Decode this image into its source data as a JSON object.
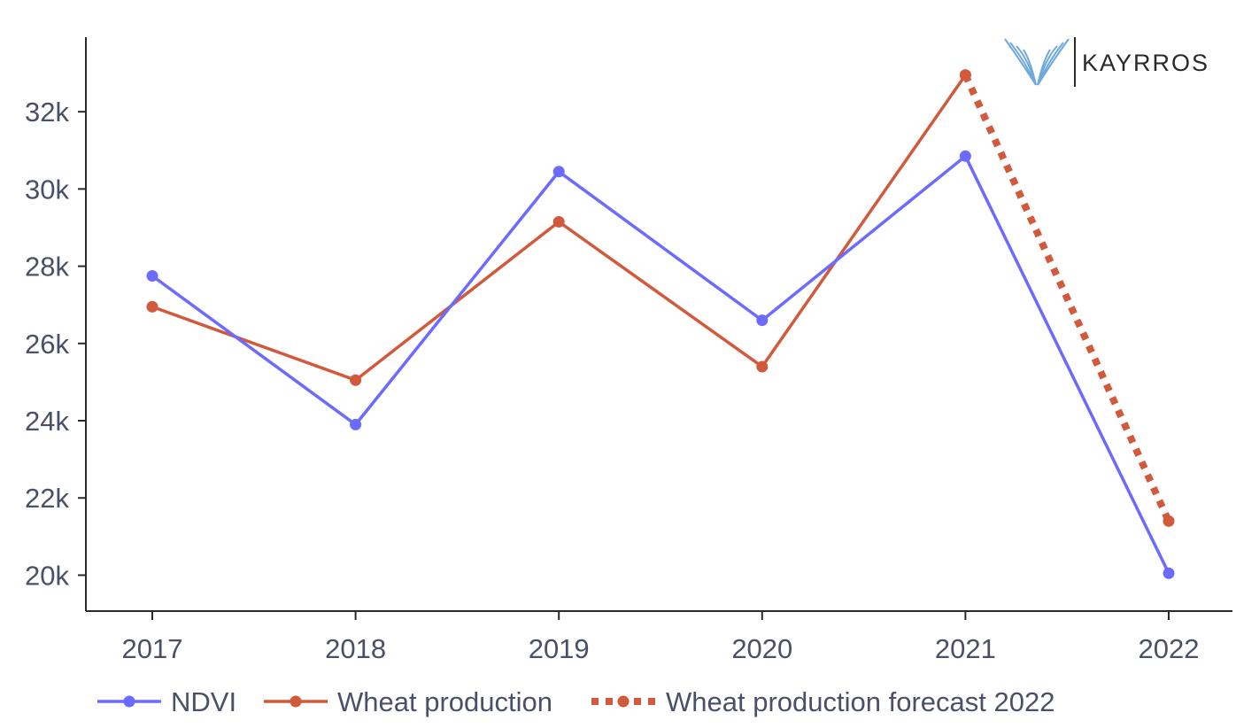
{
  "logo": {
    "text": "KAYRROS"
  },
  "chart_data": {
    "type": "line",
    "categories": [
      "2017",
      "2018",
      "2019",
      "2020",
      "2021",
      "2022"
    ],
    "y_ticks": [
      20000,
      22000,
      24000,
      26000,
      28000,
      30000,
      32000
    ],
    "y_tick_labels": [
      "20k",
      "22k",
      "24k",
      "26k",
      "28k",
      "30k",
      "32k"
    ],
    "ylim": [
      19070,
      33930
    ],
    "grid": false,
    "legend_position": "bottom-left",
    "series": [
      {
        "name": "NDVI",
        "color": "#6b6bff",
        "style": "solid",
        "x": [
          "2017",
          "2018",
          "2019",
          "2020",
          "2021",
          "2022"
        ],
        "values": [
          27750,
          23900,
          30450,
          26600,
          30850,
          20050
        ]
      },
      {
        "name": "Wheat production",
        "color": "#d25a3c",
        "style": "solid",
        "x": [
          "2017",
          "2018",
          "2019",
          "2020",
          "2021"
        ],
        "values": [
          26950,
          25050,
          29150,
          25400,
          32950
        ]
      },
      {
        "name": "Wheat production forecast 2022",
        "color": "#d25a3c",
        "style": "dotted",
        "x": [
          "2021",
          "2022"
        ],
        "values": [
          32950,
          21400
        ]
      }
    ]
  }
}
